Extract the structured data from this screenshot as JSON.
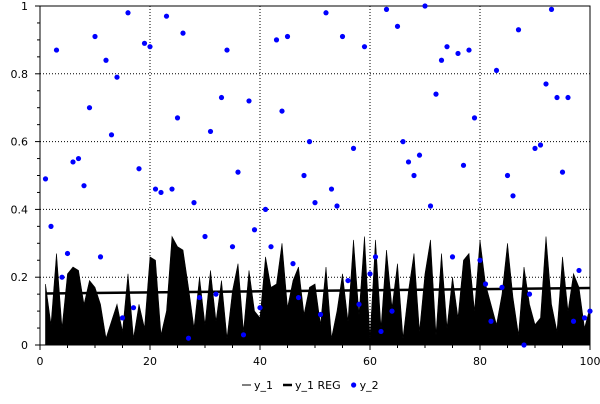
{
  "chart_data": {
    "type": "area",
    "title": "",
    "xlabel": "",
    "ylabel": "",
    "xlim": [
      0,
      100
    ],
    "ylim": [
      0,
      1
    ],
    "grid": true,
    "legend_placement": "bottom-center",
    "x_ticks": [
      0,
      20,
      40,
      60,
      80,
      100
    ],
    "y_ticks": [
      0,
      0.2,
      0.4,
      0.6,
      0.8,
      1
    ],
    "x_tick_labels": [
      "0",
      "20",
      "40",
      "60",
      "80",
      "100"
    ],
    "y_tick_labels": [
      "0",
      "0.2",
      "0.4",
      "0.6",
      "0.8",
      "1"
    ],
    "x": [
      1,
      2,
      3,
      4,
      5,
      6,
      7,
      8,
      9,
      10,
      11,
      12,
      13,
      14,
      15,
      16,
      17,
      18,
      19,
      20,
      21,
      22,
      23,
      24,
      25,
      26,
      27,
      28,
      29,
      30,
      31,
      32,
      33,
      34,
      35,
      36,
      37,
      38,
      39,
      40,
      41,
      42,
      43,
      44,
      45,
      46,
      47,
      48,
      49,
      50,
      51,
      52,
      53,
      54,
      55,
      56,
      57,
      58,
      59,
      60,
      61,
      62,
      63,
      64,
      65,
      66,
      67,
      68,
      69,
      70,
      71,
      72,
      73,
      74,
      75,
      76,
      77,
      78,
      79,
      80,
      81,
      82,
      83,
      84,
      85,
      86,
      87,
      88,
      89,
      90,
      91,
      92,
      93,
      94,
      95,
      96,
      97,
      98,
      99,
      100
    ],
    "series": [
      {
        "name": "y_1",
        "type": "area",
        "color": "#000000",
        "values": [
          0.18,
          0.06,
          0.27,
          0.05,
          0.21,
          0.23,
          0.22,
          0.12,
          0.19,
          0.17,
          0.12,
          0.02,
          0.07,
          0.12,
          0.04,
          0.21,
          0.02,
          0.12,
          0.05,
          0.26,
          0.25,
          0.03,
          0.1,
          0.32,
          0.29,
          0.28,
          0.17,
          0.05,
          0.2,
          0.06,
          0.22,
          0.07,
          0.19,
          0.02,
          0.16,
          0.24,
          0.04,
          0.22,
          0.1,
          0.08,
          0.26,
          0.17,
          0.18,
          0.3,
          0.11,
          0.19,
          0.23,
          0.09,
          0.17,
          0.18,
          0.06,
          0.23,
          0.02,
          0.1,
          0.21,
          0.07,
          0.31,
          0.09,
          0.32,
          0.02,
          0.31,
          0.05,
          0.28,
          0.11,
          0.24,
          0.02,
          0.16,
          0.27,
          0.04,
          0.21,
          0.31,
          0.03,
          0.27,
          0.05,
          0.2,
          0.08,
          0.25,
          0.27,
          0.1,
          0.31,
          0.18,
          0.12,
          0.06,
          0.15,
          0.3,
          0.14,
          0.03,
          0.23,
          0.12,
          0.06,
          0.08,
          0.32,
          0.12,
          0.04,
          0.26,
          0.1,
          0.21,
          0.17,
          0.05,
          0.11
        ]
      },
      {
        "name": "y_1 REG",
        "type": "line",
        "color": "#000000",
        "x": [
          1,
          100
        ],
        "values": [
          0.152,
          0.168
        ]
      },
      {
        "name": "y_2",
        "type": "scatter",
        "color": "#0000ff",
        "values": [
          0.49,
          0.35,
          0.87,
          0.2,
          0.27,
          0.54,
          0.55,
          0.47,
          0.7,
          0.91,
          0.26,
          0.84,
          0.62,
          0.79,
          0.08,
          0.98,
          0.11,
          0.52,
          0.89,
          0.88,
          0.46,
          0.45,
          0.97,
          0.46,
          0.67,
          0.92,
          0.02,
          0.42,
          0.14,
          0.32,
          0.63,
          0.15,
          0.73,
          0.87,
          0.29,
          0.51,
          0.03,
          0.72,
          0.34,
          0.11,
          0.4,
          0.29,
          0.9,
          0.69,
          0.91,
          0.24,
          0.14,
          0.5,
          0.6,
          0.42,
          0.09,
          0.98,
          0.46,
          0.41,
          0.91,
          0.19,
          0.58,
          0.12,
          0.88,
          0.21,
          0.26,
          0.04,
          0.99,
          0.1,
          0.94,
          0.6,
          0.54,
          0.5,
          0.56,
          1.0,
          0.41,
          0.74,
          0.84,
          0.88,
          0.26,
          0.86,
          0.53,
          0.87,
          0.67,
          0.25,
          0.18,
          0.07,
          0.81,
          0.17,
          0.5,
          0.44,
          0.93,
          0.0,
          0.15,
          0.58,
          0.59,
          0.77,
          0.99,
          0.73,
          0.51,
          0.73,
          0.07,
          0.22,
          0.08,
          0.1
        ]
      }
    ],
    "legend": [
      {
        "label": "y_1",
        "symbol": "line-thin"
      },
      {
        "label": "y_1 REG",
        "symbol": "line-thick"
      },
      {
        "label": "y_2",
        "symbol": "dot"
      }
    ]
  }
}
